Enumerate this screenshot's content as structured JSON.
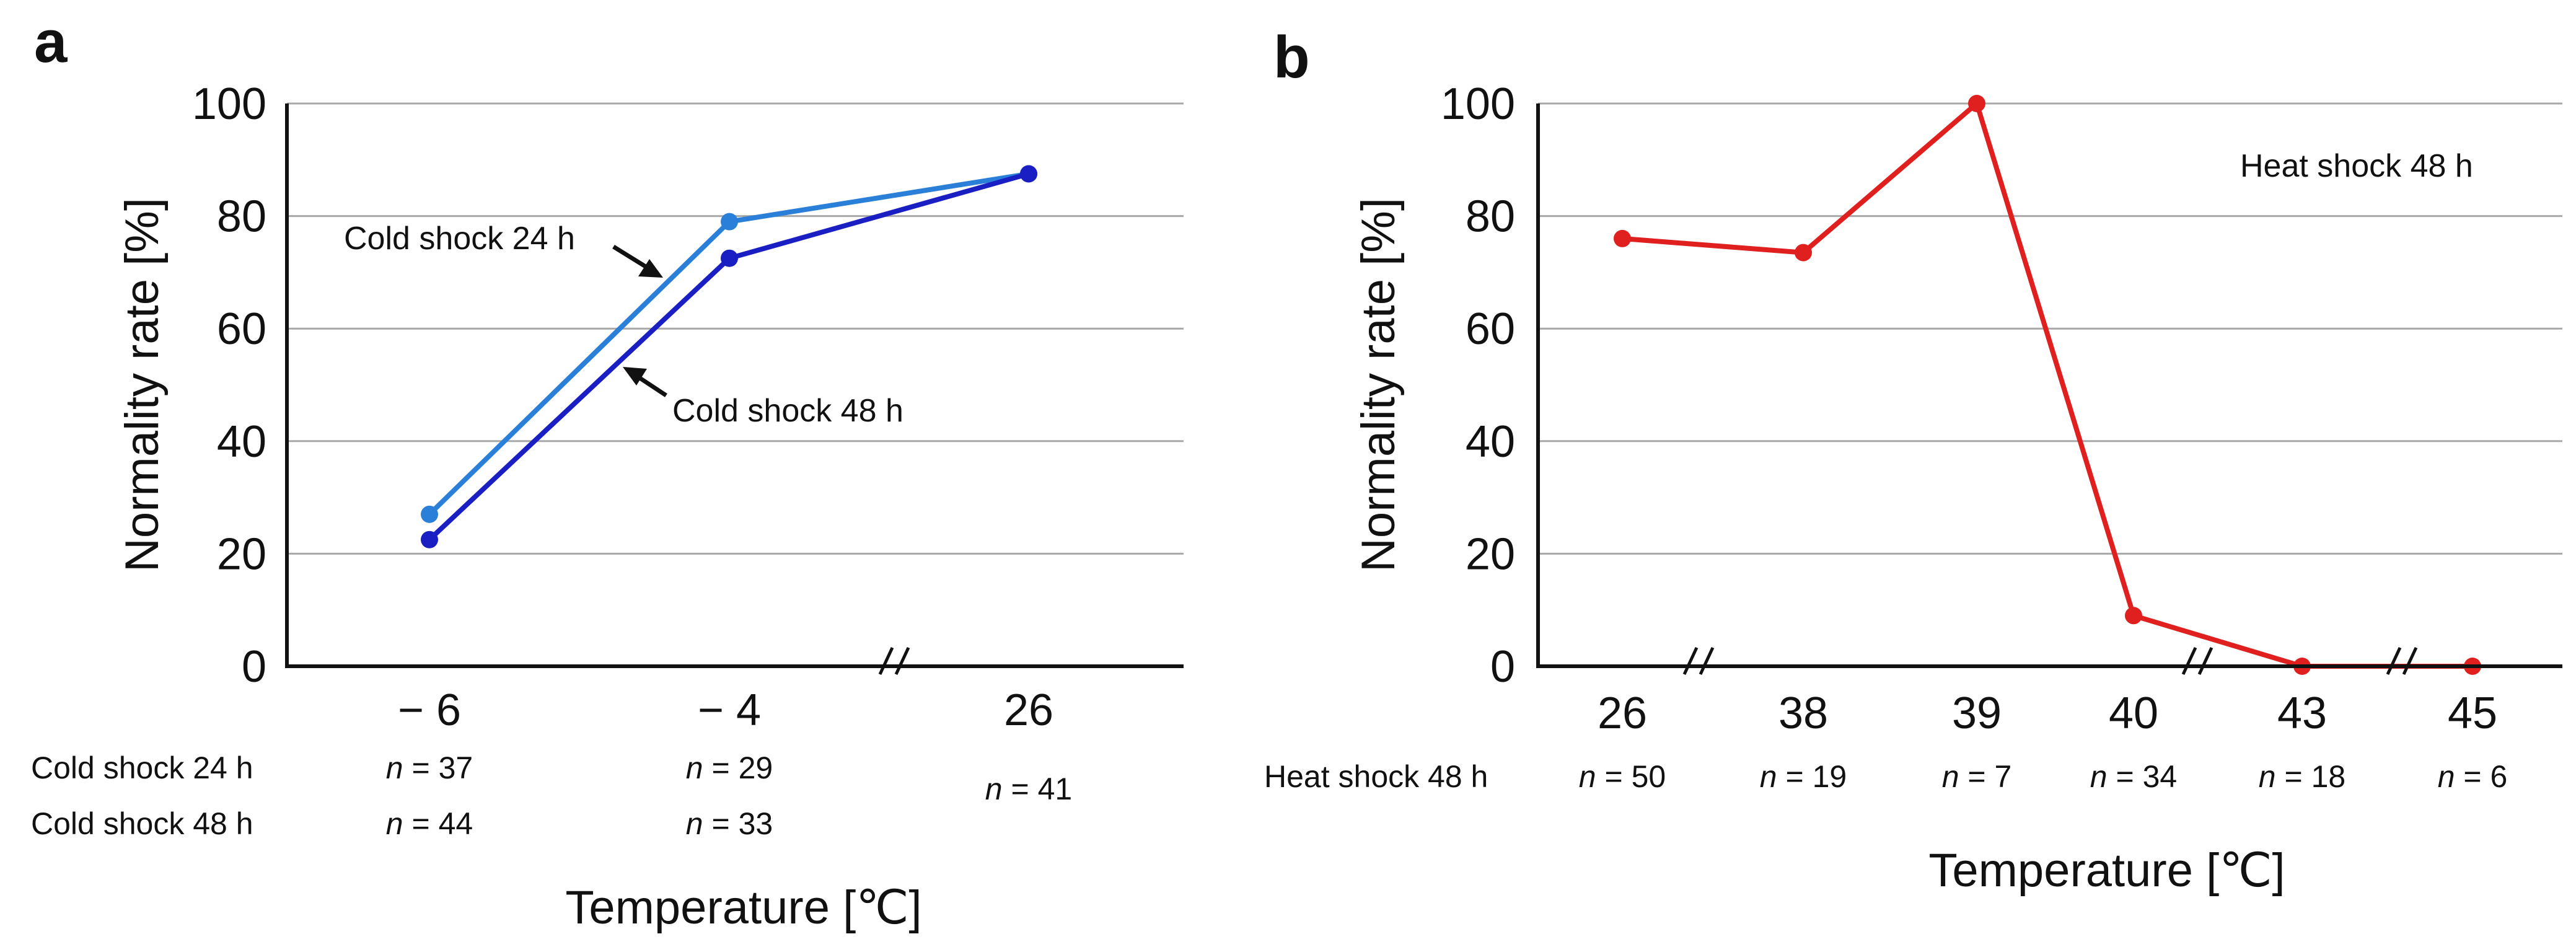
{
  "chart_data": [
    {
      "panel": "a",
      "type": "line",
      "xlabel": "Temperature [℃]",
      "ylabel": "Normality rate [%]",
      "ylim": [
        0,
        100
      ],
      "yticks": [
        "0",
        "20",
        "40",
        "60",
        "80",
        "100"
      ],
      "categories": [
        "− 6",
        "− 4",
        "26"
      ],
      "axis_break_between": [
        1,
        2
      ],
      "series": [
        {
          "name": "Cold shock 24 h",
          "values": [
            27,
            79,
            87.5
          ],
          "color": "#2a7fd9"
        },
        {
          "name": "Cold shock 48 h",
          "values": [
            22.5,
            72.5,
            87.5
          ],
          "color": "#1a1fc4"
        }
      ],
      "annotations": [
        "Cold shock 24 h",
        "Cold shock 48 h"
      ],
      "sample_sizes": {
        "rows": [
          "Cold shock 24 h",
          "Cold shock 48 h"
        ],
        "n_prefix": "n",
        "columns": [
          [
            "= 37",
            "= 44"
          ],
          [
            "= 29",
            "= 33"
          ],
          [
            "= 41"
          ]
        ]
      }
    },
    {
      "panel": "b",
      "type": "line",
      "title": "Heat shock 48 h",
      "xlabel": "Temperature [℃]",
      "ylabel": "Normality rate [%]",
      "ylim": [
        0,
        100
      ],
      "yticks": [
        "0",
        "20",
        "40",
        "60",
        "80",
        "100"
      ],
      "categories": [
        "26",
        "38",
        "39",
        "40",
        "43",
        "45"
      ],
      "axis_breaks_between": [
        [
          0,
          1
        ],
        [
          3,
          4
        ],
        [
          4,
          5
        ]
      ],
      "series": [
        {
          "name": "Heat shock 48 h",
          "values": [
            76,
            73.5,
            100,
            9,
            0,
            0
          ],
          "color": "#e01f1f"
        }
      ],
      "sample_sizes": {
        "row": "Heat shock 48 h",
        "n_prefix": "n",
        "values": [
          "= 50",
          "= 19",
          "= 7",
          "= 34",
          "= 18",
          "= 6"
        ]
      }
    }
  ]
}
